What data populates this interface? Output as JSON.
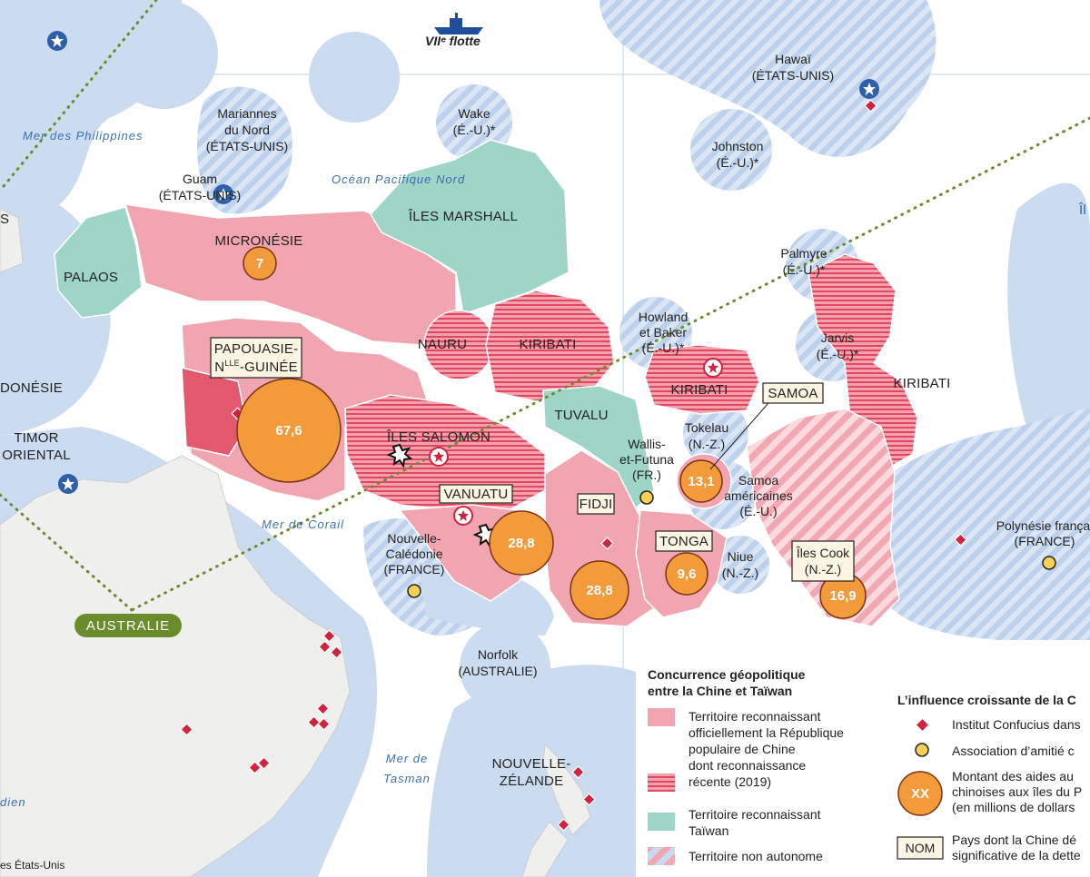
{
  "map": {
    "fleet": "VIIᵉ flotte",
    "seas": {
      "philippines": "Mer des Philippines",
      "pacific": "Océan Pacifique Nord",
      "coral": "Mer de Corail",
      "tasman": [
        "Mer de",
        "Tasman"
      ],
      "indian": "dien"
    },
    "places": {
      "marianas": [
        "Mariannes",
        "du Nord",
        "(ÉTATS-UNIS)"
      ],
      "guam": [
        "Guam",
        "(ÉTATS-UNIS)"
      ],
      "wake": [
        "Wake",
        "(É.-U.)*"
      ],
      "hawaii": [
        "Hawaï",
        "(ÉTATS-UNIS)"
      ],
      "johnston": [
        "Johnston",
        "(É.-U.)*"
      ],
      "marshall": "ÎLES MARSHALL",
      "micronesia": "MICRONÉSIE",
      "palau": "PALAOS",
      "nauru": "NAURU",
      "kiribati_west": "KIRIBATI",
      "kiribati_central": "KIRIBATI",
      "kiribati_east": "KIRIBATI",
      "palmyra": [
        "Palmyre",
        "(É.-U.)*"
      ],
      "howland": [
        "Howland",
        "et Baker",
        "(É.-U.)*"
      ],
      "jarvis": [
        "Jarvis",
        "(É.-U.)*"
      ],
      "png": [
        "PAPOUASIE-",
        "N",
        "LLE",
        "-GUINÉE"
      ],
      "solomon": "ÎLES SALOMON",
      "tuvalu": "TUVALU",
      "tokelau": [
        "Tokelau",
        "(N.-Z.)"
      ],
      "samoa": "SAMOA",
      "wallis": [
        "Wallis-",
        "et-Futuna",
        "(FR.)"
      ],
      "american_samoa": [
        "Samoa",
        "américaines",
        "(É.-U.)"
      ],
      "indonesia": "DONÉSIE",
      "timor": [
        "TIMOR",
        "ORIENTAL"
      ],
      "vanuatu": "VANUATU",
      "fiji": "FIDJI",
      "tonga": "TONGA",
      "niue": [
        "Niue",
        "(N.-Z.)"
      ],
      "cook": [
        "Îles Cook",
        "(N.-Z.)"
      ],
      "polynesia": [
        "Polynésie françai",
        "(FRANCE)"
      ],
      "new_caledonia": [
        "Nouvelle-",
        "Calédonie",
        "(FRANCE)"
      ],
      "australia": "AUSTRALIE",
      "norfolk": [
        "Norfolk",
        "(AUSTRALIE)"
      ],
      "new_zealand": [
        "NOUVELLE-",
        "ZÉLANDE"
      ],
      "left_edge": "S",
      "right_edge": "Îl",
      "source": "es États-Unis"
    },
    "aid": {
      "micronesia": "7",
      "png": "67,6",
      "vanuatu": "28,8",
      "fiji": "28,8",
      "samoa": "13,1",
      "tonga": "9,6",
      "cook": "16,9"
    }
  },
  "legend_rivalry": {
    "title": [
      "Concurrence géopolitique",
      "entre la Chine et Taïwan"
    ],
    "items": [
      [
        "Territoire reconnaissant",
        "officiellement la République",
        "populaire de Chine"
      ],
      [
        "dont reconnaissance",
        "récente (2019)"
      ],
      [
        "Territoire reconnaissant",
        "Taïwan"
      ],
      [
        "Territoire non autonome"
      ]
    ]
  },
  "legend_influence": {
    "title": "L’influence croissante de la C",
    "items": [
      [
        "Institut Confucius dans"
      ],
      [
        "Association d’amitié c"
      ],
      [
        "Montant des aides au",
        "chinoises aux îles du P",
        "(en millions de dollars"
      ],
      [
        "Pays dont la Chine dé",
        "significative de la dette"
      ]
    ],
    "aid_symbol": "XX",
    "name_symbol": "NOM"
  }
}
